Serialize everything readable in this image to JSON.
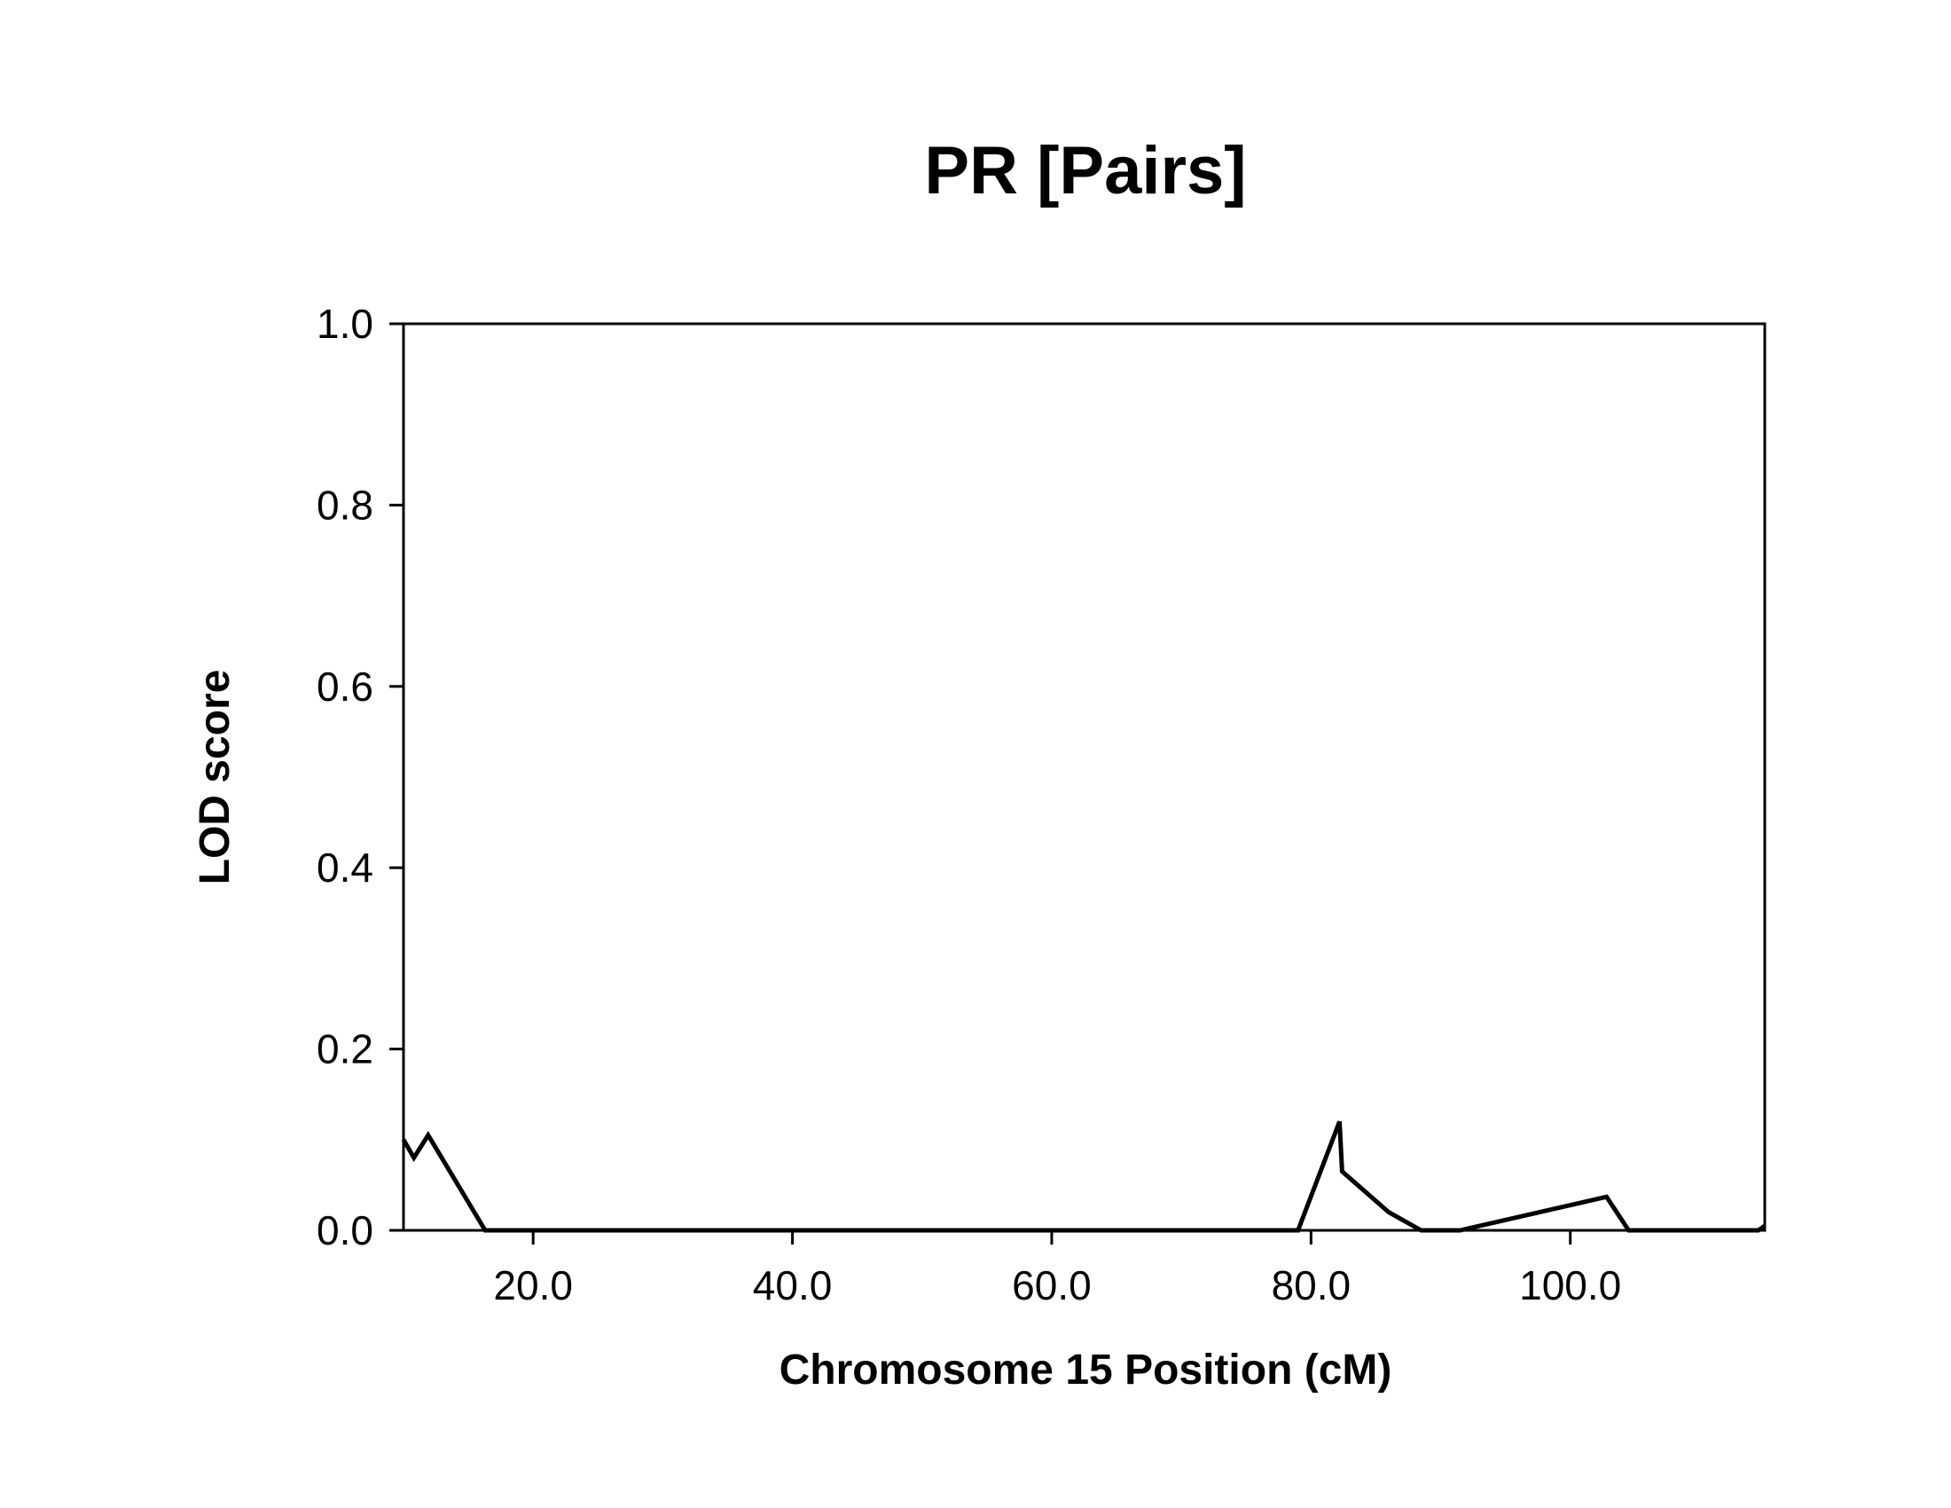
{
  "chart_data": {
    "type": "line",
    "title": "PR [Pairs]",
    "xlabel": "Chromosome 15 Position (cM)",
    "ylabel": "LOD score",
    "xlim": [
      10,
      115
    ],
    "ylim": [
      0,
      1.0
    ],
    "x_ticks": [
      20,
      40,
      60,
      80,
      100
    ],
    "x_tick_labels": [
      "20.0",
      "40.0",
      "60.0",
      "80.0",
      "100.0"
    ],
    "y_ticks": [
      0,
      0.2,
      0.4,
      0.6,
      0.8,
      1.0
    ],
    "y_tick_labels": [
      "0.0",
      "0.2",
      "0.4",
      "0.6",
      "0.8",
      "1.0"
    ],
    "grid": false,
    "series": [
      {
        "name": "LOD",
        "color": "#000000",
        "x": [
          10,
          10.8,
          11.9,
          16.3,
          79,
          82.2,
          82.4,
          86,
          88.5,
          91.5,
          102.8,
          104.5,
          114.5,
          115
        ],
        "y": [
          0.1,
          0.08,
          0.105,
          0,
          0,
          0.12,
          0.065,
          0.02,
          0,
          0,
          0.037,
          0,
          0,
          0.005
        ]
      }
    ]
  }
}
